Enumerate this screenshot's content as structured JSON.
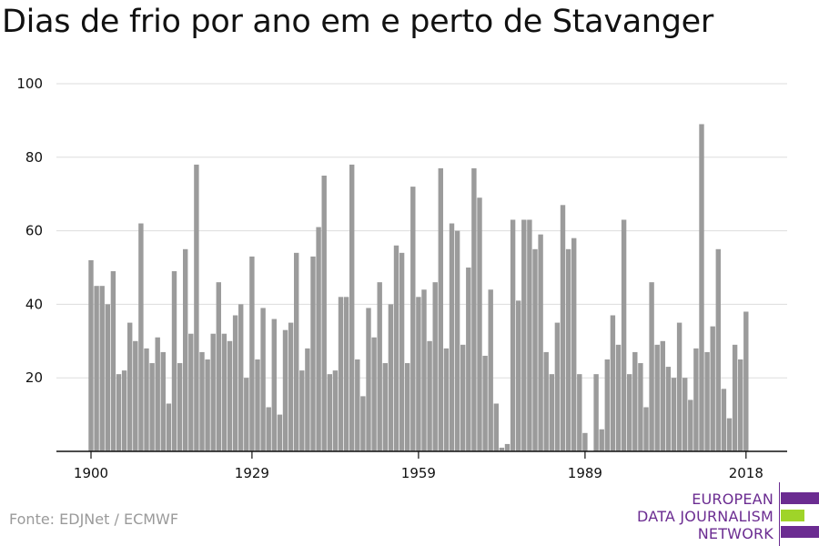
{
  "chart_data": {
    "type": "bar",
    "title": "Dias de frio por ano em e perto de Stavanger",
    "start_year": 1900,
    "end_year": 2018,
    "x_tick_labels": [
      "1900",
      "1929",
      "1959",
      "1989",
      "2018"
    ],
    "y_ticks": [
      20,
      40,
      60,
      80,
      100
    ],
    "ylim": [
      0,
      100
    ],
    "grid": "horizontal",
    "legend": "none",
    "bar_color": "#9b9b9b",
    "values": [
      52,
      45,
      45,
      40,
      49,
      21,
      22,
      35,
      30,
      62,
      28,
      24,
      31,
      27,
      13,
      49,
      24,
      55,
      32,
      78,
      27,
      25,
      32,
      46,
      32,
      30,
      37,
      40,
      20,
      53,
      25,
      39,
      12,
      36,
      10,
      33,
      35,
      54,
      22,
      28,
      53,
      61,
      75,
      21,
      22,
      42,
      42,
      78,
      25,
      15,
      39,
      31,
      46,
      24,
      40,
      56,
      54,
      24,
      72,
      42,
      44,
      30,
      46,
      77,
      28,
      62,
      60,
      29,
      50,
      77,
      69,
      26,
      44,
      13,
      1,
      2,
      63,
      41,
      63,
      63,
      55,
      59,
      27,
      21,
      35,
      67,
      55,
      58,
      21,
      5,
      0,
      21,
      6,
      25,
      37,
      29,
      63,
      21,
      27,
      24,
      12,
      46,
      29,
      30,
      23,
      20,
      35,
      20,
      14,
      28,
      89,
      27,
      34,
      55,
      17,
      9,
      29,
      25,
      38
    ]
  },
  "source": "Fonte: EDJNet / ECMWF",
  "logo": {
    "line1": "EUROPEAN",
    "line2": "DATA JOURNALISM",
    "line3": "NETWORK",
    "text_color": "#6b2c91",
    "accent_purple": "#6b2c91",
    "accent_green": "#9fd429"
  }
}
